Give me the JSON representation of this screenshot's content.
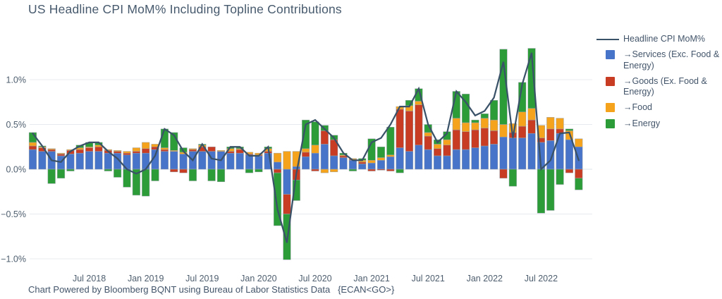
{
  "chart": {
    "title": "US Headline CPI MoM% Including Topline Contributions",
    "footer": "Chart Powered by Bloomberg BQNT using Bureau of Labor Statistics Data   {ECAN<GO>}",
    "colors": {
      "services_blue": "#4773C8",
      "goods_red": "#C83C23",
      "food_orange": "#F5A21C",
      "energy_green": "#2C9C38",
      "headline_line": "#3A5268",
      "grid": "#E7EBEF",
      "zero_line": "#DEE4E9",
      "text_slate": "#4E5E6E",
      "bar_outline": "#9AA3AB"
    }
  },
  "legend": {
    "items": [
      {
        "swatch": "line",
        "color": "#3A5268",
        "label": "Headline CPI MoM%"
      },
      {
        "swatch": "square",
        "color": "#4773C8",
        "label": "→Services (Exc. Food & Energy)"
      },
      {
        "swatch": "square",
        "color": "#C83C23",
        "label": "→Goods (Ex. Food & Energy)"
      },
      {
        "swatch": "square",
        "color": "#F5A21C",
        "label": "→Food"
      },
      {
        "swatch": "square",
        "color": "#2C9C38",
        "label": "→Energy"
      }
    ]
  },
  "chart_data": {
    "type": "bar",
    "subtype": "stacked-bars-with-line-overlay",
    "title": "US Headline CPI MoM% Including Topline Contributions",
    "xlabel": "",
    "ylabel": "",
    "ylim": [
      -1.05,
      1.45
    ],
    "grid": true,
    "legend_position": "right",
    "y_ticks": [
      {
        "value": 1.0,
        "label": "1.0%"
      },
      {
        "value": 0.5,
        "label": "0.5%"
      },
      {
        "value": 0.0,
        "label": "0.0%"
      },
      {
        "value": -0.5,
        "label": "−0.5%"
      },
      {
        "value": -1.0,
        "label": "−1.0%"
      }
    ],
    "x_ticks": [
      "Jul 2018",
      "Jan 2019",
      "Jul 2019",
      "Jan 2020",
      "Jul 2020",
      "Jan 2021",
      "Jul 2021",
      "Jan 2022",
      "Jul 2022"
    ],
    "categories": [
      "Jan 2018",
      "Feb 2018",
      "Mar 2018",
      "Apr 2018",
      "May 2018",
      "Jun 2018",
      "Jul 2018",
      "Aug 2018",
      "Sep 2018",
      "Oct 2018",
      "Nov 2018",
      "Dec 2018",
      "Jan 2019",
      "Feb 2019",
      "Mar 2019",
      "Apr 2019",
      "May 2019",
      "Jun 2019",
      "Jul 2019",
      "Aug 2019",
      "Sep 2019",
      "Oct 2019",
      "Nov 2019",
      "Dec 2019",
      "Jan 2020",
      "Feb 2020",
      "Mar 2020",
      "Apr 2020",
      "May 2020",
      "Jun 2020",
      "Jul 2020",
      "Aug 2020",
      "Sep 2020",
      "Oct 2020",
      "Nov 2020",
      "Dec 2020",
      "Jan 2021",
      "Feb 2021",
      "Mar 2021",
      "Apr 2021",
      "May 2021",
      "Jun 2021",
      "Jul 2021",
      "Aug 2021",
      "Sep 2021",
      "Oct 2021",
      "Nov 2021",
      "Dec 2021",
      "Jan 2022",
      "Feb 2022",
      "Mar 2022",
      "Apr 2022",
      "May 2022",
      "Jun 2022",
      "Jul 2022",
      "Aug 2022",
      "Sep 2022",
      "Oct 2022",
      "Nov 2022"
    ],
    "stack_order_bottom_to_top": [
      "Services (Exc. Food & Energy)",
      "Goods (Ex. Food & Energy)",
      "Food",
      "Energy"
    ],
    "series": [
      {
        "key": "services",
        "name": "Services (Exc. Food & Energy)",
        "color": "#4773C8",
        "values": [
          0.22,
          0.2,
          0.2,
          0.15,
          0.17,
          0.18,
          0.2,
          0.2,
          0.18,
          0.18,
          0.16,
          0.18,
          0.18,
          0.22,
          0.2,
          0.2,
          0.17,
          0.2,
          0.2,
          0.2,
          0.2,
          0.18,
          0.18,
          0.16,
          0.15,
          0.18,
          0.08,
          -0.28,
          0.03,
          0.14,
          0.18,
          0.28,
          0.15,
          0.13,
          0.1,
          0.06,
          0.07,
          0.1,
          0.14,
          0.24,
          0.2,
          0.27,
          0.22,
          0.15,
          0.15,
          0.22,
          0.22,
          0.24,
          0.26,
          0.28,
          0.36,
          0.35,
          0.35,
          0.4,
          0.3,
          0.32,
          0.4,
          0.33,
          0.25
        ]
      },
      {
        "key": "goods",
        "name": "Goods (Ex. Food & Energy)",
        "color": "#C83C23",
        "values": [
          0.04,
          0.04,
          0.02,
          0.02,
          0.04,
          0.04,
          0.04,
          0.05,
          0.03,
          0.02,
          0.02,
          0.02,
          0.05,
          0.03,
          0.02,
          -0.03,
          -0.04,
          0.02,
          0.05,
          0.05,
          0.0,
          0.02,
          0.04,
          0.01,
          0.01,
          0.02,
          -0.04,
          -0.22,
          -0.12,
          0.05,
          -0.02,
          0.15,
          0.18,
          0.02,
          0.01,
          0.02,
          -0.02,
          -0.01,
          -0.02,
          0.43,
          0.45,
          0.45,
          0.15,
          0.08,
          0.12,
          0.22,
          0.2,
          0.2,
          0.2,
          0.15,
          -0.1,
          0.06,
          0.13,
          0.15,
          0.05,
          0.13,
          0.05,
          -0.04,
          -0.1
        ]
      },
      {
        "key": "food",
        "name": "Food",
        "color": "#F5A21C",
        "values": [
          0.04,
          0.01,
          0.01,
          0.01,
          0.01,
          0.02,
          0.01,
          0.02,
          0.01,
          0.01,
          0.02,
          0.04,
          0.07,
          0.03,
          0.02,
          0.01,
          0.02,
          0.01,
          0.02,
          0.0,
          0.01,
          0.03,
          0.01,
          0.02,
          0.02,
          0.03,
          0.1,
          0.2,
          0.17,
          0.04,
          0.09,
          -0.04,
          -0.03,
          0.01,
          0.01,
          0.02,
          0.03,
          0.03,
          0.02,
          0.03,
          0.06,
          0.04,
          0.04,
          0.05,
          0.06,
          0.13,
          0.1,
          0.08,
          0.11,
          0.12,
          0.14,
          0.1,
          0.16,
          0.13,
          0.14,
          0.13,
          0.12,
          0.1,
          0.09
        ]
      },
      {
        "key": "energy",
        "name": "Energy",
        "color": "#2C9C38",
        "values": [
          0.11,
          0.01,
          -0.16,
          -0.1,
          -0.02,
          0.03,
          0.05,
          0.03,
          -0.02,
          -0.09,
          -0.2,
          -0.29,
          -0.3,
          -0.13,
          0.21,
          0.2,
          0.05,
          -0.13,
          0.01,
          -0.13,
          -0.14,
          0.02,
          0.02,
          -0.04,
          -0.03,
          0.02,
          -0.59,
          -0.51,
          -0.23,
          0.32,
          0.26,
          0.06,
          0.05,
          0.02,
          -0.02,
          0.02,
          0.24,
          0.12,
          0.31,
          -0.04,
          0.06,
          0.14,
          0.09,
          0.05,
          0.09,
          0.3,
          0.32,
          0.03,
          0.05,
          0.22,
          0.84,
          -0.19,
          0.33,
          0.67,
          -0.49,
          -0.46,
          -0.17,
          0.02,
          -0.13
        ]
      }
    ],
    "line": {
      "key": "headline",
      "name": "Headline CPI MoM%",
      "color": "#3A5268",
      "values": [
        0.4,
        0.26,
        0.1,
        0.08,
        0.2,
        0.26,
        0.3,
        0.3,
        0.2,
        0.12,
        0.0,
        -0.05,
        0.0,
        0.15,
        0.45,
        0.38,
        0.2,
        0.1,
        0.28,
        0.12,
        0.1,
        0.25,
        0.25,
        0.15,
        0.15,
        0.25,
        -0.45,
        -0.82,
        -0.05,
        0.5,
        0.55,
        0.45,
        0.35,
        0.18,
        0.1,
        0.1,
        0.3,
        0.35,
        0.5,
        0.7,
        0.7,
        0.9,
        0.5,
        0.3,
        0.4,
        0.87,
        0.75,
        0.6,
        0.65,
        0.8,
        1.2,
        0.35,
        0.95,
        1.3,
        0.0,
        0.1,
        0.4,
        0.41,
        0.1
      ]
    }
  }
}
